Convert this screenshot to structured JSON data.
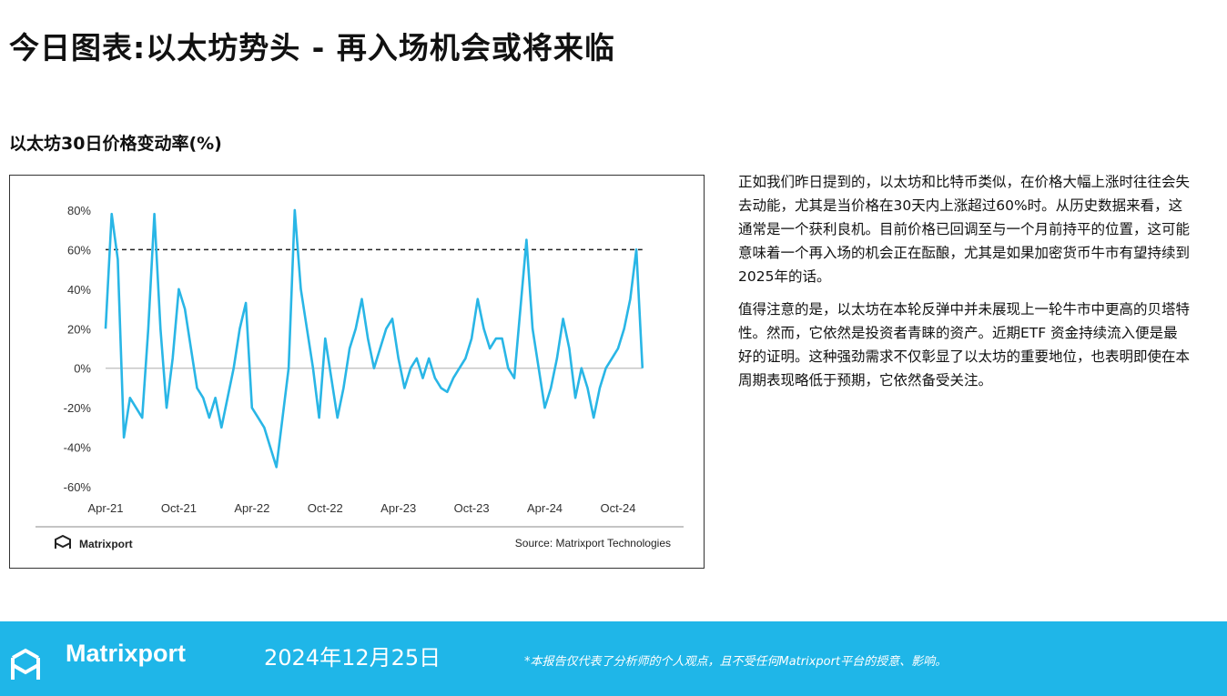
{
  "header": {
    "title": "今日图表:以太坊势头 - 再入场机会或将来临"
  },
  "chart_data": {
    "type": "line",
    "title": "以太坊30日价格变动率(%)",
    "categories": [
      "Apr-21",
      null,
      null,
      null,
      null,
      null,
      null,
      null,
      null,
      null,
      null,
      null,
      "Oct-21",
      null,
      null,
      null,
      null,
      null,
      null,
      null,
      null,
      null,
      null,
      null,
      "Apr-22",
      null,
      null,
      null,
      null,
      null,
      null,
      null,
      null,
      null,
      null,
      null,
      "Oct-22",
      null,
      null,
      null,
      null,
      null,
      null,
      null,
      null,
      null,
      null,
      null,
      "Apr-23",
      null,
      null,
      null,
      null,
      null,
      null,
      null,
      null,
      null,
      null,
      null,
      "Oct-23",
      null,
      null,
      null,
      null,
      null,
      null,
      null,
      null,
      null,
      null,
      null,
      "Apr-24",
      null,
      null,
      null,
      null,
      null,
      null,
      null,
      null,
      null,
      null,
      null,
      "Oct-24",
      null,
      null,
      null,
      null
    ],
    "values": [
      20,
      78,
      55,
      -35,
      -15,
      -20,
      -25,
      20,
      78,
      20,
      -20,
      5,
      40,
      30,
      10,
      -10,
      -15,
      -25,
      -15,
      -30,
      -15,
      0,
      20,
      33,
      -20,
      -25,
      -30,
      -40,
      -50,
      -25,
      0,
      80,
      40,
      20,
      0,
      -25,
      15,
      -5,
      -25,
      -10,
      10,
      20,
      35,
      15,
      0,
      10,
      20,
      25,
      5,
      -10,
      0,
      5,
      -5,
      5,
      -5,
      -10,
      -12,
      -5,
      0,
      5,
      15,
      35,
      20,
      10,
      15,
      15,
      0,
      -5,
      30,
      65,
      20,
      0,
      -20,
      -10,
      5,
      25,
      10,
      -15,
      0,
      -10,
      -25,
      -10,
      0,
      5,
      10,
      20,
      35,
      60,
      0
    ],
    "color": "#29b6e6",
    "threshold": 60,
    "ylim": [
      -65,
      85
    ],
    "yticks": [
      {
        "value": -60,
        "label": "-60%"
      },
      {
        "value": -40,
        "label": "-40%"
      },
      {
        "value": -20,
        "label": "-20%"
      },
      {
        "value": 0,
        "label": "0%"
      },
      {
        "value": 20,
        "label": "20%"
      },
      {
        "value": 40,
        "label": "40%"
      },
      {
        "value": 60,
        "label": "60%"
      },
      {
        "value": 80,
        "label": "80%"
      }
    ],
    "logo": "Matrixport",
    "source": "Source: Matrixport Technologies"
  },
  "body": [
    "正如我们昨日提到的，以太坊和比特币类似，在价格大幅上涨时往往会失去动能，尤其是当价格在30天内上涨超过60%时。从历史数据来看，这通常是一个获利良机。目前价格已回调至与一个月前持平的位置，这可能意味着一个再入场的机会正在酝酿，尤其是如果加密货币牛市有望持续到2025年的话。",
    "值得注意的是，以太坊在本轮反弹中并未展现上一轮牛市中更高的贝塔特性。然而，它依然是投资者青睐的资产。近期ETF 资金持续流入便是最好的证明。这种强劲需求不仅彰显了以太坊的重要地位，也表明即使在本周期表现略低于预期，它依然备受关注。"
  ],
  "footer": {
    "brand": "Matrixport",
    "date": "2024年12月25日",
    "disclaimer": "*本报告仅代表了分析师的个人观点，且不受任何Matrixport平台的授意、影响。"
  }
}
